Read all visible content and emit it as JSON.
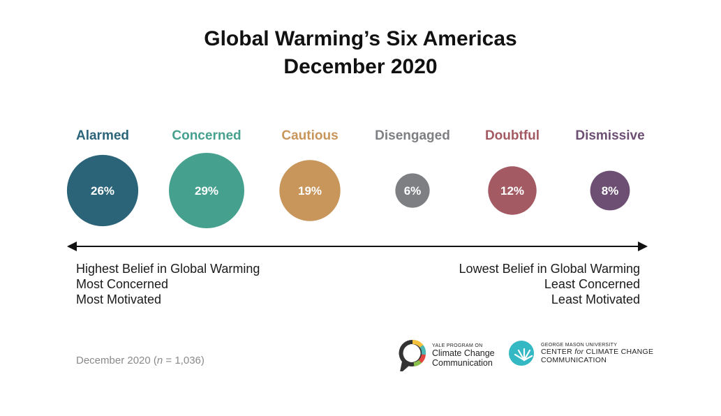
{
  "title_line1": "Global Warming’s Six Americas",
  "title_line2": "December 2020",
  "chart_data": {
    "type": "bubble",
    "categories": [
      "Alarmed",
      "Concerned",
      "Cautious",
      "Disengaged",
      "Doubtful",
      "Dismissive"
    ],
    "values": [
      26,
      29,
      19,
      6,
      12,
      8
    ],
    "value_labels": [
      "26%",
      "29%",
      "19%",
      "6%",
      "12%",
      "8%"
    ],
    "colors": [
      "#2b6478",
      "#45a08d",
      "#c8955a",
      "#7d7f83",
      "#a35a63",
      "#6d4f73"
    ],
    "arrow": "double-headed horizontal"
  },
  "left_caption": [
    "Highest Belief in Global Warming",
    "Most Concerned",
    "Most Motivated"
  ],
  "right_caption": [
    "Lowest Belief in Global Warming",
    "Least Concerned",
    "Least Motivated"
  ],
  "footnote": {
    "prefix": "December 2020 (",
    "n_symbol": "n",
    "suffix": " = 1,036)"
  },
  "logos": {
    "yale": {
      "small": "YALE PROGRAM ON",
      "line1": "Climate Change",
      "line2": "Communication",
      "icon": "speech-bubble-ring-icon"
    },
    "gmu": {
      "small": "GEORGE MASON UNIVERSITY",
      "line1_a": "CENTER ",
      "line1_b": "for",
      "line1_c": " CLIMATE CHANGE",
      "line2": "COMMUNICATION",
      "icon": "sunburst-circle-icon"
    }
  }
}
